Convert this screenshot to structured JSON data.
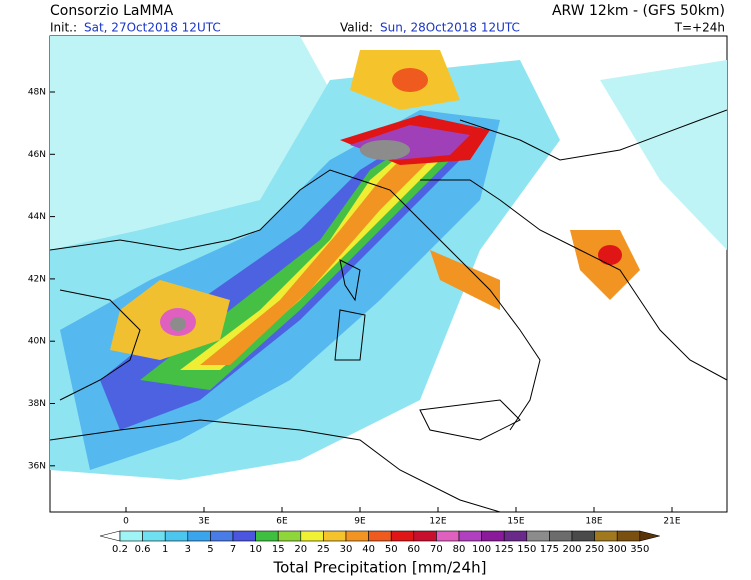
{
  "header": {
    "title": "Consorzio LaMMA",
    "model": "ARW 12km - (GFS 50km)",
    "init_label": "Init.:",
    "init_time": "Sat, 27Oct2018 12UTC",
    "valid_label": "Valid:",
    "valid_time": "Sun, 28Oct2018 12UTC",
    "lead": "T=+24h"
  },
  "map": {
    "lat_labels": [
      "48N",
      "46N",
      "44N",
      "42N",
      "40N",
      "38N",
      "36N"
    ],
    "lon_labels": [
      "0",
      "3E",
      "6E",
      "9E",
      "12E",
      "15E",
      "18E",
      "21E"
    ]
  },
  "colorbar": {
    "title": "Total Precipitation [mm/24h]",
    "levels": [
      0.2,
      0.6,
      1,
      3,
      5,
      7,
      10,
      15,
      20,
      25,
      30,
      40,
      50,
      60,
      70,
      80,
      100,
      125,
      150,
      175,
      200,
      250,
      300,
      350
    ],
    "colors": [
      "#ffffff",
      "#9ff5f5",
      "#6ee0f0",
      "#4cc6ee",
      "#3aa4ec",
      "#4a7ce8",
      "#4b55e0",
      "#3fbf3f",
      "#8fd63a",
      "#f0f034",
      "#f5c42c",
      "#f29422",
      "#ef5a1e",
      "#e01616",
      "#c8102e",
      "#e060c0",
      "#b040c0",
      "#8a1a9a",
      "#6a2a8a",
      "#8c8c8c",
      "#6c6c6c",
      "#4a4a4a",
      "#a0781e",
      "#7a5010",
      "#5a3408"
    ]
  }
}
